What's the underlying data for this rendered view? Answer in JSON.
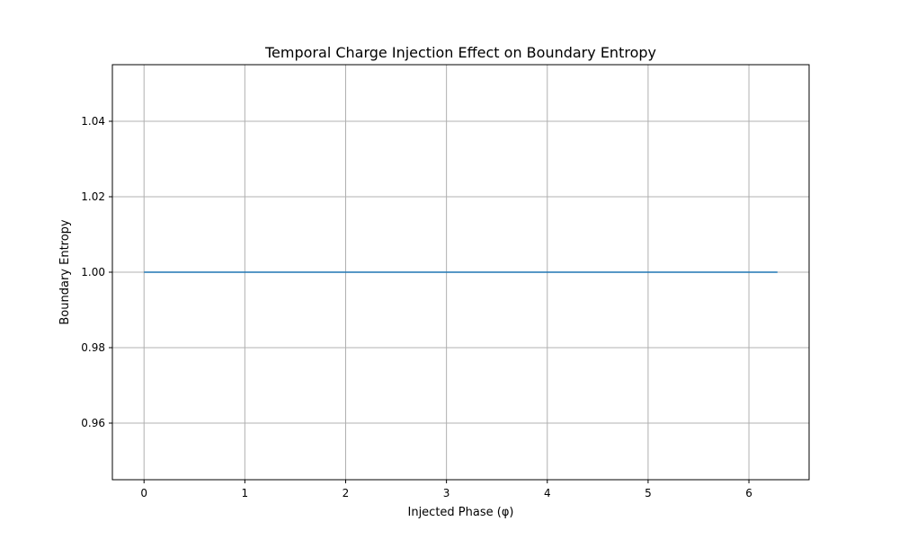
{
  "chart_data": {
    "type": "line",
    "title": "Temporal Charge Injection Effect on Boundary Entropy",
    "xlabel": "Injected Phase (φ)",
    "ylabel": "Boundary Entropy",
    "xlim": [
      -0.314,
      6.597
    ],
    "ylim": [
      0.945,
      1.055
    ],
    "xticks": [
      0,
      1,
      2,
      3,
      4,
      5,
      6
    ],
    "xtick_labels": [
      "0",
      "1",
      "2",
      "3",
      "4",
      "5",
      "6"
    ],
    "yticks": [
      0.96,
      0.98,
      1.0,
      1.02,
      1.04
    ],
    "ytick_labels": [
      "0.96",
      "0.98",
      "1.00",
      "1.02",
      "1.04"
    ],
    "grid": true,
    "legend": "none",
    "series": [
      {
        "color": "#1f77b4",
        "x": [
          0,
          6.2832
        ],
        "y": [
          1.0,
          1.0
        ]
      }
    ]
  }
}
